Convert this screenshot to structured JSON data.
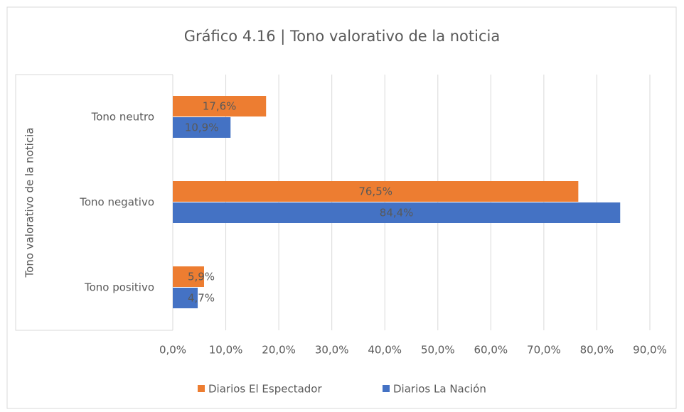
{
  "chart_data": {
    "type": "hbar",
    "title": "Gráfico 4.16 | Tono valorativo de la noticia",
    "ylabel": "Tono valorativo de la noticia",
    "categories": [
      "Tono neutro",
      "Tono negativo",
      "Tono positivo"
    ],
    "series": [
      {
        "name": "Diarios El Espectador",
        "color": "#ed7d31",
        "values": [
          17.6,
          76.5,
          5.9
        ],
        "value_labels": [
          "17,6%",
          "76,5%",
          "5,9%"
        ]
      },
      {
        "name": "Diarios La Nación",
        "color": "#4472c4",
        "values": [
          10.9,
          84.4,
          4.7
        ],
        "value_labels": [
          "10,9%",
          "84,4%",
          "4,7%"
        ]
      }
    ],
    "xlim": [
      0,
      90
    ],
    "xticks": [
      {
        "value": 0,
        "label": "0,0%"
      },
      {
        "value": 10,
        "label": "10,0%"
      },
      {
        "value": 20,
        "label": "20,0%"
      },
      {
        "value": 30,
        "label": "30,0%"
      },
      {
        "value": 40,
        "label": "40,0%"
      },
      {
        "value": 50,
        "label": "50,0%"
      },
      {
        "value": 60,
        "label": "60,0%"
      },
      {
        "value": 70,
        "label": "70,0%"
      },
      {
        "value": 80,
        "label": "80,0%"
      },
      {
        "value": 90,
        "label": "90,0%"
      }
    ],
    "grid": true,
    "legend": "bottom"
  }
}
